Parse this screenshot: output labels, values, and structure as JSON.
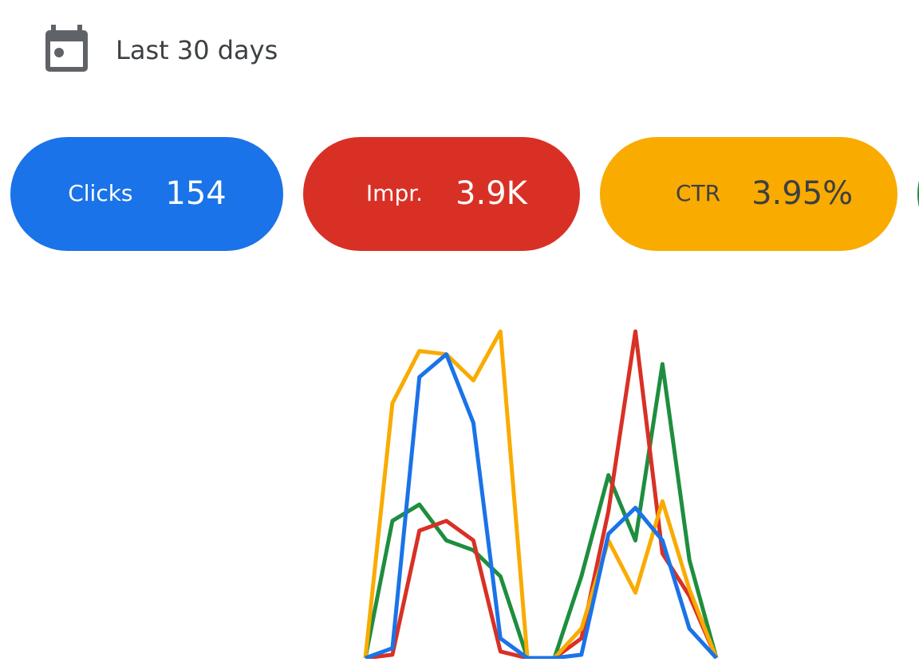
{
  "header": {
    "date_range": "Last 30 days"
  },
  "metrics": [
    {
      "label": "Clicks",
      "value": "154",
      "color": "#1a73e8",
      "text_color": "#ffffff"
    },
    {
      "label": "Impr.",
      "value": "3.9K",
      "color": "#d93025",
      "text_color": "#ffffff"
    },
    {
      "label": "CTR",
      "value": "3.95%",
      "color": "#f9ab00",
      "text_color": "#3c4043"
    }
  ],
  "chart_data": {
    "type": "line",
    "ylim": [
      0,
      100
    ],
    "series": [
      {
        "color": "#1e8e3e",
        "values": [
          0,
          42,
          47,
          36,
          33,
          25,
          0,
          0,
          25,
          56,
          36,
          90,
          30,
          0
        ]
      },
      {
        "color": "#d93025",
        "values": [
          0,
          1,
          39,
          42,
          36,
          2,
          0,
          0,
          6,
          45,
          100,
          32,
          19,
          0
        ]
      },
      {
        "color": "#f9ab00",
        "values": [
          0,
          78,
          94,
          93,
          85,
          100,
          0,
          0,
          9,
          36,
          20,
          48,
          21,
          0
        ]
      },
      {
        "color": "#1a73e8",
        "values": [
          0,
          3,
          86,
          93,
          72,
          6,
          0,
          0,
          1,
          38,
          46,
          36,
          9,
          0
        ]
      }
    ]
  }
}
